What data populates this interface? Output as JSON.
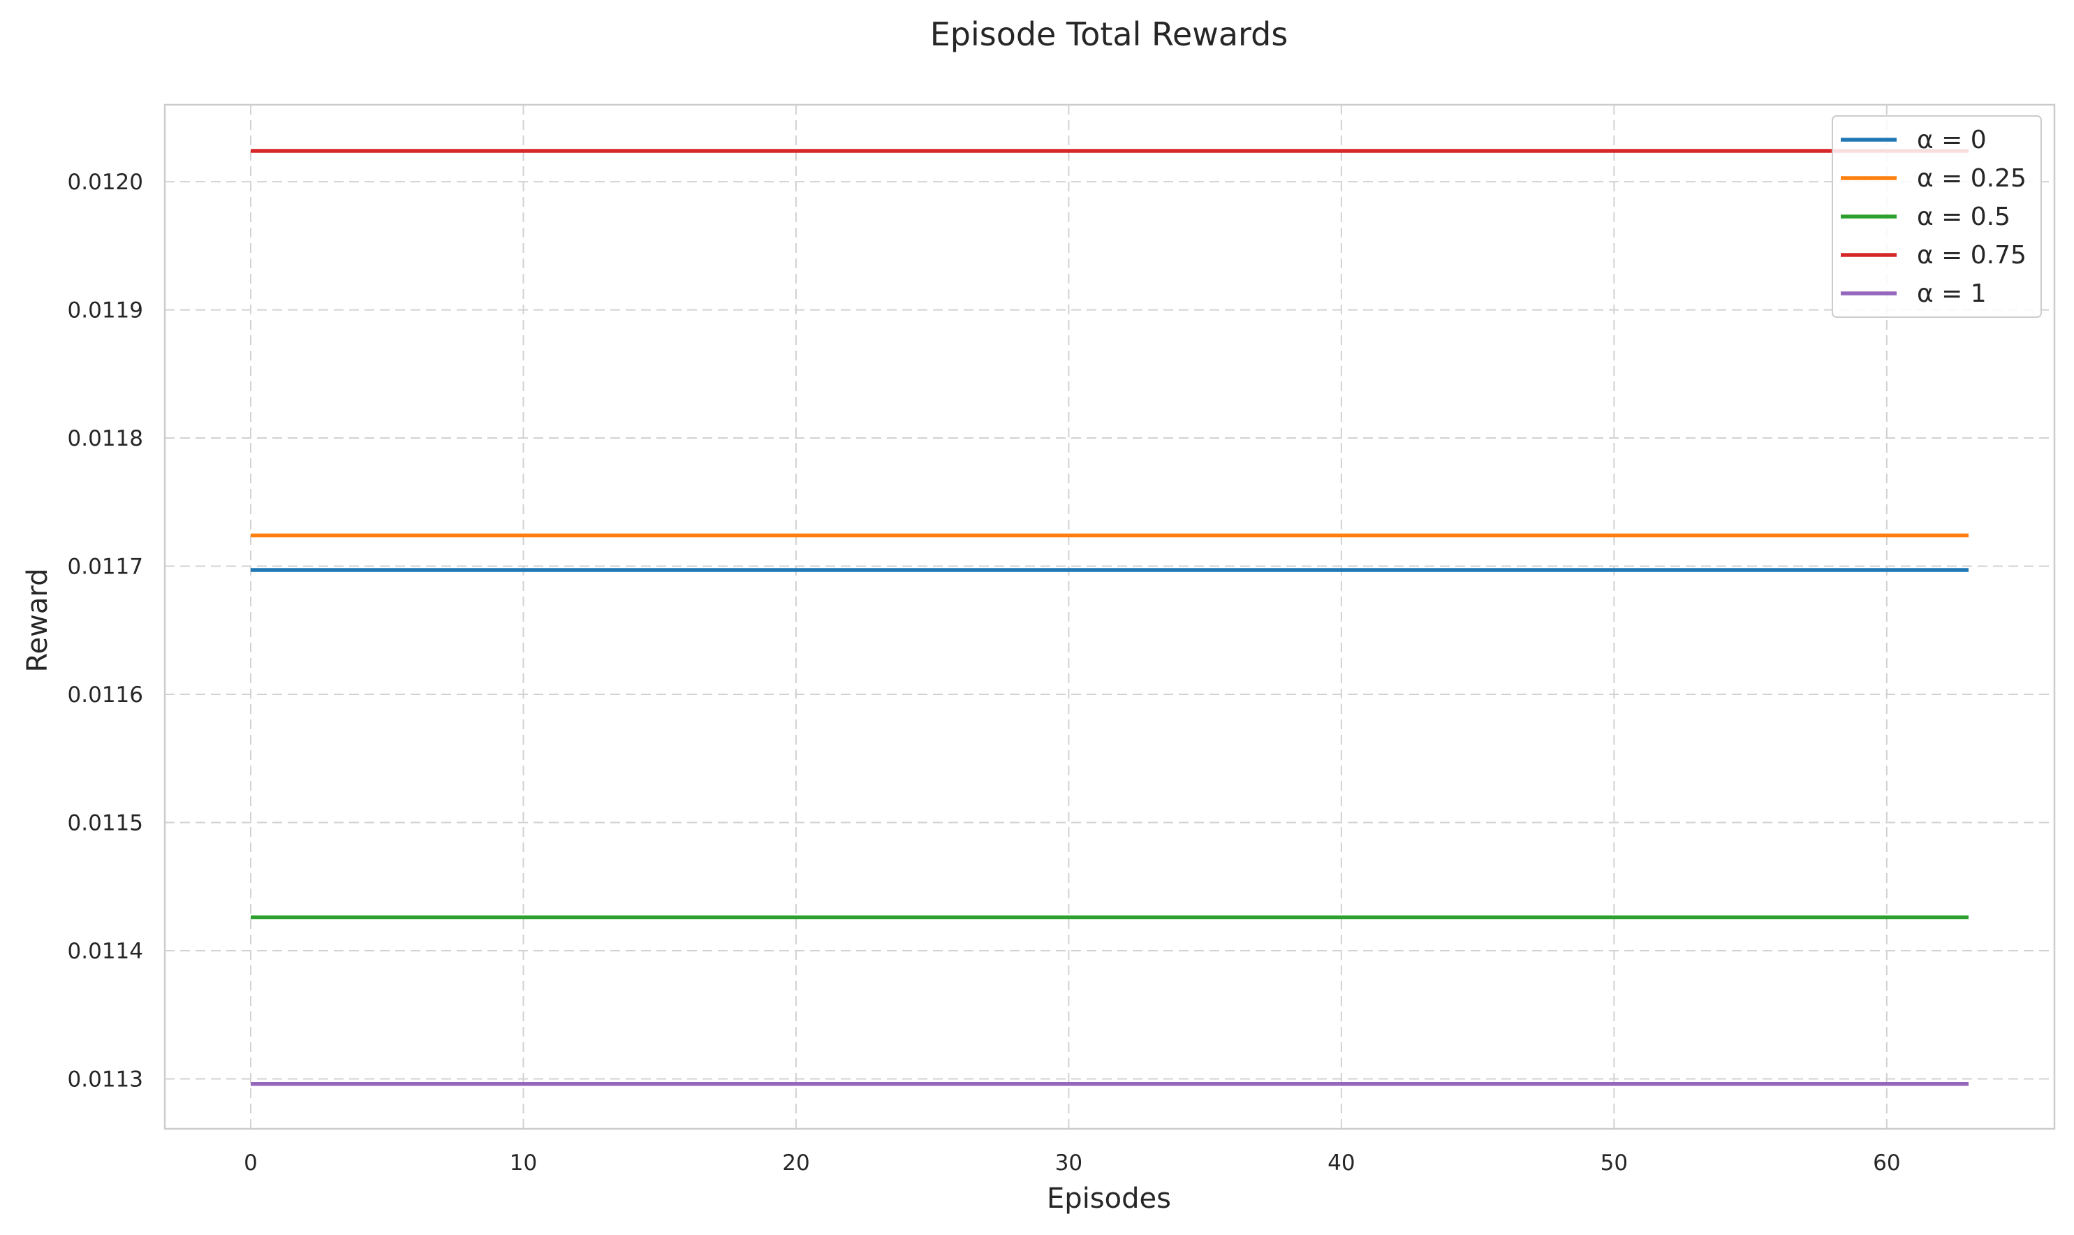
{
  "chart_data": {
    "type": "line",
    "title": "Episode Total Rewards",
    "xlabel": "Episodes",
    "ylabel": "Reward",
    "xlim": [
      -3.15,
      66.15
    ],
    "ylim": [
      0.011261,
      0.01206
    ],
    "xticks": [
      0,
      10,
      20,
      30,
      40,
      50,
      60
    ],
    "yticks": [
      0.0113,
      0.0114,
      0.0115,
      0.0116,
      0.0117,
      0.0118,
      0.0119,
      0.012
    ],
    "ytick_labels": [
      "0.0113",
      "0.0114",
      "0.0115",
      "0.0116",
      "0.0117",
      "0.0118",
      "0.0119",
      "0.0120"
    ],
    "x": [
      0,
      63
    ],
    "grid": true,
    "legend_position": "top-right",
    "series": [
      {
        "name": "α = 0",
        "color": "#1f77b4",
        "values": [
          0.011697,
          0.011697
        ]
      },
      {
        "name": "α = 0.25",
        "color": "#ff7f0e",
        "values": [
          0.011724,
          0.011724
        ]
      },
      {
        "name": "α = 0.5",
        "color": "#2ca02c",
        "values": [
          0.011426,
          0.011426
        ]
      },
      {
        "name": "α = 0.75",
        "color": "#d62728",
        "values": [
          0.012024,
          0.012024
        ]
      },
      {
        "name": "α = 1",
        "color": "#9467bd",
        "values": [
          0.011296,
          0.011296
        ]
      }
    ]
  }
}
